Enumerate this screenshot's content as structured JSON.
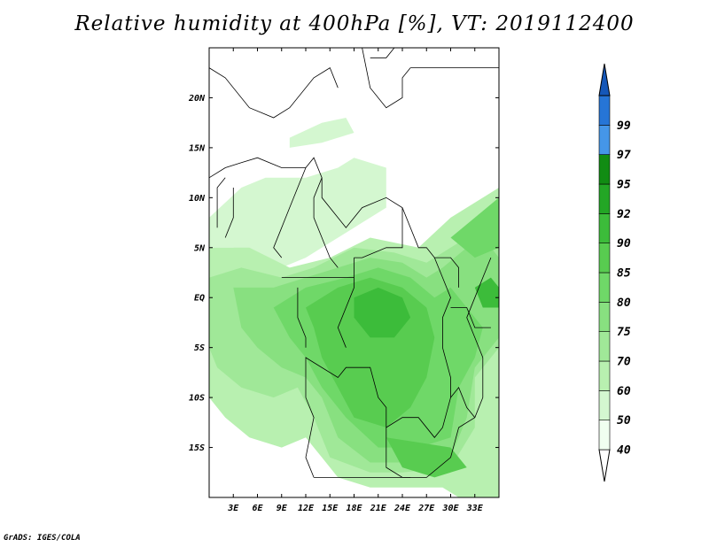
{
  "title": "Relative humidity at 400hPa [%], VT: 2019112400",
  "credit": "GrADS: IGES/COLA",
  "map": {
    "lon_range": [
      0,
      36
    ],
    "lat_range": [
      -20,
      25
    ],
    "lat_ticks": [
      {
        "value": 20,
        "label": "20N"
      },
      {
        "value": 15,
        "label": "15N"
      },
      {
        "value": 10,
        "label": "10N"
      },
      {
        "value": 5,
        "label": "5N"
      },
      {
        "value": 0,
        "label": "EQ"
      },
      {
        "value": -5,
        "label": "5S"
      },
      {
        "value": -10,
        "label": "10S"
      },
      {
        "value": -15,
        "label": "15S"
      }
    ],
    "lon_ticks": [
      {
        "value": 3,
        "label": "3E"
      },
      {
        "value": 6,
        "label": "6E"
      },
      {
        "value": 9,
        "label": "9E"
      },
      {
        "value": 12,
        "label": "12E"
      },
      {
        "value": 15,
        "label": "15E"
      },
      {
        "value": 18,
        "label": "18E"
      },
      {
        "value": 21,
        "label": "21E"
      },
      {
        "value": 24,
        "label": "24E"
      },
      {
        "value": 27,
        "label": "27E"
      },
      {
        "value": 30,
        "label": "30E"
      },
      {
        "value": 33,
        "label": "33E"
      }
    ]
  },
  "colorbar": {
    "levels": [
      "40",
      "50",
      "60",
      "70",
      "75",
      "80",
      "85",
      "90",
      "92",
      "95",
      "97",
      "99"
    ],
    "colors": [
      "#f0fff0",
      "#d4f7d0",
      "#b8f0b0",
      "#a0e898",
      "#88e080",
      "#6fd868",
      "#58cc50",
      "#3cbc3a",
      "#23a625",
      "#118c13",
      "#4596e8",
      "#2675d6",
      "#1557b8"
    ],
    "bottom_color": "#ffffff"
  },
  "humidity_regions": [
    {
      "level": 1,
      "poly": [
        [
          0,
          8
        ],
        [
          4,
          11
        ],
        [
          7,
          12
        ],
        [
          12,
          12
        ],
        [
          16,
          13
        ],
        [
          18,
          14
        ],
        [
          22,
          13
        ],
        [
          22,
          9
        ],
        [
          18,
          7
        ],
        [
          14,
          5
        ],
        [
          12,
          4
        ],
        [
          9,
          3
        ],
        [
          6,
          4
        ],
        [
          3,
          5
        ],
        [
          0,
          5
        ]
      ]
    },
    {
      "level": 1,
      "poly": [
        [
          10,
          16
        ],
        [
          14,
          17.5
        ],
        [
          17,
          18
        ],
        [
          18,
          16.5
        ],
        [
          14,
          15.5
        ],
        [
          10,
          15
        ]
      ]
    },
    {
      "level": 2,
      "poly": [
        [
          0,
          5
        ],
        [
          5,
          5
        ],
        [
          10,
          3
        ],
        [
          15,
          4
        ],
        [
          20,
          6
        ],
        [
          26,
          5
        ],
        [
          30,
          8
        ],
        [
          36,
          11
        ],
        [
          36,
          -20
        ],
        [
          31,
          -20
        ],
        [
          29,
          -19
        ],
        [
          25,
          -19
        ],
        [
          20,
          -19
        ],
        [
          16,
          -18
        ],
        [
          14,
          -16
        ],
        [
          12,
          -14
        ],
        [
          9,
          -15
        ],
        [
          5,
          -14
        ],
        [
          2,
          -12
        ],
        [
          0,
          -10
        ]
      ]
    },
    {
      "level": 3,
      "poly": [
        [
          0,
          2
        ],
        [
          4,
          3
        ],
        [
          9,
          2
        ],
        [
          13,
          3
        ],
        [
          18,
          5
        ],
        [
          23,
          4.5
        ],
        [
          27,
          3.5
        ],
        [
          30,
          5
        ],
        [
          34,
          7
        ],
        [
          36,
          8
        ],
        [
          36,
          -5
        ],
        [
          33,
          -8
        ],
        [
          33,
          -13
        ],
        [
          30,
          -17
        ],
        [
          24,
          -17.5
        ],
        [
          20,
          -17.5
        ],
        [
          15,
          -16
        ],
        [
          13,
          -12
        ],
        [
          11,
          -9
        ],
        [
          8,
          -10
        ],
        [
          4,
          -9
        ],
        [
          1,
          -7
        ],
        [
          0,
          -5
        ]
      ]
    },
    {
      "level": 4,
      "poly": [
        [
          3,
          1
        ],
        [
          8,
          1
        ],
        [
          12,
          2
        ],
        [
          16,
          3
        ],
        [
          20,
          4
        ],
        [
          24,
          3.5
        ],
        [
          27,
          2
        ],
        [
          29,
          3
        ],
        [
          32,
          5
        ],
        [
          35,
          5
        ],
        [
          36,
          4
        ],
        [
          36,
          -4
        ],
        [
          33,
          -7
        ],
        [
          32,
          -12
        ],
        [
          30,
          -16
        ],
        [
          25,
          -16.5
        ],
        [
          20,
          -16.5
        ],
        [
          16,
          -14
        ],
        [
          14,
          -10
        ],
        [
          12,
          -8
        ],
        [
          9,
          -7
        ],
        [
          6,
          -5
        ],
        [
          4,
          -3
        ]
      ]
    },
    {
      "level": 5,
      "poly": [
        [
          8,
          -1
        ],
        [
          12,
          1
        ],
        [
          17,
          2
        ],
        [
          21,
          3
        ],
        [
          25,
          2
        ],
        [
          28,
          0
        ],
        [
          30,
          1
        ],
        [
          32,
          -1
        ],
        [
          34,
          -3
        ],
        [
          33,
          -6
        ],
        [
          31,
          -9
        ],
        [
          30,
          -14
        ],
        [
          26,
          -15
        ],
        [
          21,
          -15
        ],
        [
          17,
          -12
        ],
        [
          14,
          -9
        ],
        [
          12,
          -6
        ],
        [
          10,
          -4
        ]
      ]
    },
    {
      "level": 6,
      "poly": [
        [
          12,
          -1
        ],
        [
          16,
          1
        ],
        [
          20,
          2
        ],
        [
          24,
          1
        ],
        [
          27,
          -1
        ],
        [
          28,
          -4
        ],
        [
          27,
          -8
        ],
        [
          25,
          -11
        ],
        [
          22,
          -13
        ],
        [
          18,
          -12
        ],
        [
          16,
          -9
        ],
        [
          14,
          -6
        ],
        [
          13,
          -3
        ]
      ]
    },
    {
      "level": 7,
      "poly": [
        [
          18,
          0
        ],
        [
          21,
          1
        ],
        [
          24,
          0
        ],
        [
          25,
          -2
        ],
        [
          23,
          -4
        ],
        [
          20,
          -4
        ],
        [
          18,
          -2
        ]
      ]
    },
    {
      "level": 6,
      "poly": [
        [
          22,
          -14
        ],
        [
          26,
          -14.5
        ],
        [
          30,
          -15
        ],
        [
          32,
          -17
        ],
        [
          28,
          -18
        ],
        [
          24,
          -17
        ]
      ]
    },
    {
      "level": 5,
      "poly": [
        [
          30,
          6
        ],
        [
          33,
          8
        ],
        [
          36,
          10
        ],
        [
          36,
          5
        ],
        [
          33,
          4
        ]
      ]
    },
    {
      "level": 7,
      "poly": [
        [
          33,
          1
        ],
        [
          35,
          2
        ],
        [
          36,
          1
        ],
        [
          36,
          -1
        ],
        [
          34,
          -1
        ]
      ]
    }
  ],
  "boundaries": [
    [
      [
        0,
        23
      ],
      [
        2,
        22
      ],
      [
        5,
        19
      ],
      [
        8,
        18
      ],
      [
        10,
        19
      ],
      [
        13,
        22
      ],
      [
        15,
        23
      ],
      [
        16,
        21
      ]
    ],
    [
      [
        0,
        12
      ],
      [
        2,
        13
      ],
      [
        4,
        13.5
      ],
      [
        6,
        14
      ],
      [
        9,
        13
      ],
      [
        12,
        13
      ],
      [
        13,
        14
      ],
      [
        14,
        12
      ],
      [
        14,
        10
      ],
      [
        16,
        8
      ],
      [
        17,
        7
      ],
      [
        19,
        9
      ],
      [
        22,
        10
      ],
      [
        24,
        9
      ],
      [
        26,
        5
      ],
      [
        27,
        5
      ],
      [
        28,
        4
      ],
      [
        30,
        4
      ],
      [
        31,
        3
      ],
      [
        31,
        1
      ]
    ],
    [
      [
        1,
        7
      ],
      [
        1,
        11
      ],
      [
        2,
        12
      ]
    ],
    [
      [
        3,
        11
      ],
      [
        3,
        8
      ],
      [
        2,
        6
      ]
    ],
    [
      [
        12,
        13
      ],
      [
        11,
        11
      ],
      [
        10,
        9
      ],
      [
        9,
        7
      ],
      [
        8,
        5
      ],
      [
        9,
        4
      ]
    ],
    [
      [
        14,
        12
      ],
      [
        13,
        10
      ],
      [
        13,
        8
      ],
      [
        14,
        6
      ],
      [
        15,
        4
      ],
      [
        16,
        3
      ]
    ],
    [
      [
        9,
        2
      ],
      [
        11,
        2
      ],
      [
        13,
        2
      ],
      [
        14,
        2
      ],
      [
        16,
        2
      ],
      [
        18,
        2
      ]
    ],
    [
      [
        11,
        1
      ],
      [
        11,
        -2
      ],
      [
        12,
        -4
      ],
      [
        12,
        -5
      ]
    ],
    [
      [
        18,
        4
      ],
      [
        18,
        1
      ],
      [
        17,
        -1
      ],
      [
        16,
        -3
      ],
      [
        17,
        -5
      ]
    ],
    [
      [
        24,
        9
      ],
      [
        24,
        5
      ],
      [
        22,
        5
      ],
      [
        19,
        4
      ],
      [
        18,
        4
      ]
    ],
    [
      [
        28,
        4
      ],
      [
        29,
        2
      ],
      [
        30,
        0
      ],
      [
        29,
        -2
      ],
      [
        29,
        -5
      ],
      [
        30,
        -8
      ],
      [
        30,
        -10
      ],
      [
        29,
        -13
      ],
      [
        28,
        -14
      ],
      [
        26,
        -12
      ],
      [
        24,
        -12
      ],
      [
        22,
        -13
      ],
      [
        22,
        -11
      ],
      [
        21,
        -10
      ],
      [
        20,
        -7
      ],
      [
        17,
        -7
      ],
      [
        16,
        -8
      ],
      [
        12,
        -6
      ],
      [
        12,
        -10
      ],
      [
        13,
        -12
      ],
      [
        12,
        -16
      ],
      [
        13,
        -18
      ]
    ],
    [
      [
        22,
        -13
      ],
      [
        22,
        -17
      ],
      [
        24,
        -18
      ],
      [
        27,
        -18
      ],
      [
        30,
        -16
      ],
      [
        31,
        -13
      ],
      [
        33,
        -12
      ],
      [
        34,
        -10
      ],
      [
        34,
        -6
      ],
      [
        33,
        -4
      ],
      [
        32,
        -2
      ],
      [
        33,
        0
      ],
      [
        34,
        2
      ],
      [
        35,
        4
      ]
    ],
    [
      [
        30,
        -1
      ],
      [
        32,
        -1
      ],
      [
        33,
        -3
      ],
      [
        35,
        -3
      ]
    ],
    [
      [
        13,
        -18
      ],
      [
        17,
        -18
      ],
      [
        20,
        -18
      ],
      [
        22,
        -18
      ],
      [
        25,
        -18
      ]
    ],
    [
      [
        30,
        -10
      ],
      [
        31,
        -9
      ],
      [
        32,
        -11
      ],
      [
        33,
        -12
      ]
    ],
    [
      [
        20,
        24
      ],
      [
        22,
        24
      ],
      [
        23,
        25
      ]
    ],
    [
      [
        19,
        25
      ],
      [
        20,
        21
      ],
      [
        22,
        19
      ],
      [
        24,
        20
      ],
      [
        24,
        22
      ],
      [
        25,
        23
      ]
    ],
    [
      [
        25,
        23
      ],
      [
        30,
        23
      ],
      [
        36,
        23
      ]
    ]
  ]
}
